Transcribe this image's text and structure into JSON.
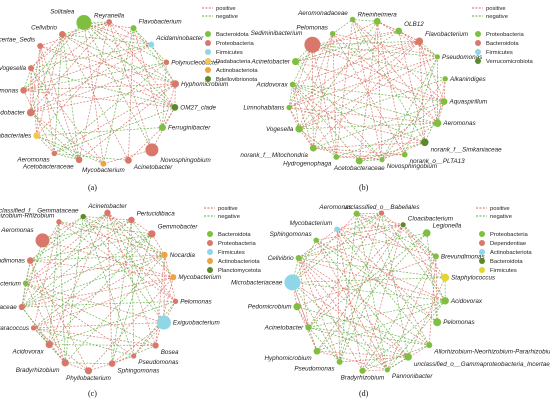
{
  "panels": [
    {
      "caption": "(a)",
      "edge_legend": [
        "positive",
        "negative"
      ],
      "phyla": [
        {
          "name": "Bacteroidota",
          "color": "#7fbf3f"
        },
        {
          "name": "Proteobacteria",
          "color": "#d9786a"
        },
        {
          "name": "Firmicutes",
          "color": "#8fd6e8"
        },
        {
          "name": "Dadabacteria",
          "color": "#f2c94c"
        },
        {
          "name": "Actinobacteriota",
          "color": "#f0a23c"
        },
        {
          "name": "Bdellovibrionota",
          "color": "#5a8a2a"
        }
      ],
      "nodes": [
        {
          "label": "Reyranella",
          "phylum": 1
        },
        {
          "label": "Flavobacterium",
          "phylum": 0
        },
        {
          "label": "Acidaminobacter",
          "phylum": 2
        },
        {
          "label": "Polynucleobacter",
          "phylum": 1
        },
        {
          "label": "Hyphomicrobium",
          "phylum": 1
        },
        {
          "label": "OM27_clade",
          "phylum": 5
        },
        {
          "label": "Ferruginibacter",
          "phylum": 0
        },
        {
          "label": "Novosphingobium",
          "phylum": 1
        },
        {
          "label": "Acinetobacter",
          "phylum": 1
        },
        {
          "label": "Mycobacterium",
          "phylum": 4
        },
        {
          "label": "Acetobacteraceae",
          "phylum": 1
        },
        {
          "label": "Aeromonas",
          "phylum": 1
        },
        {
          "label": "norank_f__norank_o__Dadabacteriales",
          "phylum": 3
        },
        {
          "label": "Rhodobacter",
          "phylum": 1
        },
        {
          "label": "Pseudomonas",
          "phylum": 1
        },
        {
          "label": "Vogesella",
          "phylum": 1
        },
        {
          "label": "norank_f__Rhizobiales_Incertae_Sedis",
          "phylum": 1
        },
        {
          "label": "Cellvibrio",
          "phylum": 1
        },
        {
          "label": "Solitalea",
          "phylum": 0
        }
      ]
    },
    {
      "caption": "(b)",
      "edge_legend": [
        "positive",
        "negative"
      ],
      "phyla": [
        {
          "name": "Proteobacteria",
          "color": "#7fbf3f"
        },
        {
          "name": "Bacteroidota",
          "color": "#d9786a"
        },
        {
          "name": "Firmicutes",
          "color": "#8fd6e8"
        },
        {
          "name": "Verrucomicrobiota",
          "color": "#5a8a2a"
        }
      ],
      "nodes": [
        {
          "label": "Rheinheimera",
          "phylum": 0
        },
        {
          "label": "OLB12",
          "phylum": 0
        },
        {
          "label": "Flavobacterium",
          "phylum": 1
        },
        {
          "label": "Pseudomonas",
          "phylum": 0
        },
        {
          "label": "Alkanindiges",
          "phylum": 0
        },
        {
          "label": "Aquaspirillum",
          "phylum": 0
        },
        {
          "label": "Aeromonas",
          "phylum": 0
        },
        {
          "label": "norank_f__Simkaniaceae",
          "phylum": 3
        },
        {
          "label": "norank_o__PLTA13",
          "phylum": 0
        },
        {
          "label": "Novosphingobium",
          "phylum": 0
        },
        {
          "label": "Acetobacteraceae",
          "phylum": 0
        },
        {
          "label": "Hydrogenophaga",
          "phylum": 0
        },
        {
          "label": "norank_f__Mitochondria",
          "phylum": 0
        },
        {
          "label": "Vogesella",
          "phylum": 0
        },
        {
          "label": "Limnohabitans",
          "phylum": 0
        },
        {
          "label": "Acidovorax",
          "phylum": 0
        },
        {
          "label": "Acinetobacter",
          "phylum": 0
        },
        {
          "label": "Sediminibacterium",
          "phylum": 1
        },
        {
          "label": "Pelomonas",
          "phylum": 0
        },
        {
          "label": "Aeromonadaceae",
          "phylum": 0
        }
      ]
    },
    {
      "caption": "(c)",
      "edge_legend": [
        "positive",
        "negative"
      ],
      "phyla": [
        {
          "name": "Bacteroidota",
          "color": "#7fbf3f"
        },
        {
          "name": "Proteobacteria",
          "color": "#d9786a"
        },
        {
          "name": "Firmicutes",
          "color": "#8fd6e8"
        },
        {
          "name": "Actinobacteriota",
          "color": "#f0a23c"
        },
        {
          "name": "Planctomycetota",
          "color": "#5a8a2a"
        }
      ],
      "nodes": [
        {
          "label": "Acinetobacter",
          "phylum": 1
        },
        {
          "label": "Pertucidibaca",
          "phylum": 1
        },
        {
          "label": "Gemmobacter",
          "phylum": 1
        },
        {
          "label": "Nocardia",
          "phylum": 3
        },
        {
          "label": "Mycobacterium",
          "phylum": 3
        },
        {
          "label": "Pelomonas",
          "phylum": 1
        },
        {
          "label": "Exiguobacterium",
          "phylum": 2
        },
        {
          "label": "Bosea",
          "phylum": 1
        },
        {
          "label": "Pseudomonas",
          "phylum": 1
        },
        {
          "label": "Sphingomonas",
          "phylum": 1
        },
        {
          "label": "Phyllobacterium",
          "phylum": 1
        },
        {
          "label": "Bradyrhizobium",
          "phylum": 1
        },
        {
          "label": "Acidovorax",
          "phylum": 1
        },
        {
          "label": "Paracoccus",
          "phylum": 1
        },
        {
          "label": "unclassified_f__Comamonadaceae",
          "phylum": 1
        },
        {
          "label": "Flavobacterium",
          "phylum": 0
        },
        {
          "label": "Brevundimonas",
          "phylum": 1
        },
        {
          "label": "Aeromonas",
          "phylum": 1
        },
        {
          "label": "Allorhizobium-Neorhizobium-Pararhizobium-Rhizobium",
          "phylum": 1
        },
        {
          "label": "unclassified_f__Gemmataceae",
          "phylum": 4
        }
      ]
    },
    {
      "caption": "(d)",
      "edge_legend": [
        "positive",
        "negative"
      ],
      "phyla": [
        {
          "name": "Proteobacteria",
          "color": "#7fbf3f"
        },
        {
          "name": "Dependentiae",
          "color": "#d9786a"
        },
        {
          "name": "Actinobacteriota",
          "color": "#8fd6e8"
        },
        {
          "name": "Bacteroidota",
          "color": "#5a8a2a"
        },
        {
          "name": "Firmicutes",
          "color": "#e3d630"
        }
      ],
      "nodes": [
        {
          "label": "unclassified_o__Babeliales",
          "phylum": 1
        },
        {
          "label": "Cloacibacterium",
          "phylum": 3
        },
        {
          "label": "Legionella",
          "phylum": 0
        },
        {
          "label": "Brevundimonas",
          "phylum": 0
        },
        {
          "label": "Staphylococcus",
          "phylum": 4
        },
        {
          "label": "Acidovorax",
          "phylum": 0
        },
        {
          "label": "Pelomonas",
          "phylum": 0
        },
        {
          "label": "Allorhizobium-Neorhizobium-Pararhizobium-Rhizobium",
          "phylum": 0
        },
        {
          "label": "unclassified_o__Gammaproteobacteria_Incertae_Sedis",
          "phylum": 0
        },
        {
          "label": "Pannonibacter",
          "phylum": 0
        },
        {
          "label": "Bradyrhizobium",
          "phylum": 0
        },
        {
          "label": "Pseudomonas",
          "phylum": 0
        },
        {
          "label": "Hyphomicrobium",
          "phylum": 0
        },
        {
          "label": "Acinetobacter",
          "phylum": 0
        },
        {
          "label": "Pedomicrobium",
          "phylum": 0
        },
        {
          "label": "Microbacteriaceae",
          "phylum": 2
        },
        {
          "label": "Cellvibrio",
          "phylum": 0
        },
        {
          "label": "Sphingomonas",
          "phylum": 0
        },
        {
          "label": "Mycobacterium",
          "phylum": 2
        },
        {
          "label": "Aeromonas",
          "phylum": 0
        }
      ]
    }
  ],
  "colors": {
    "positive": "#d46a5c",
    "negative": "#5aaa3a"
  }
}
